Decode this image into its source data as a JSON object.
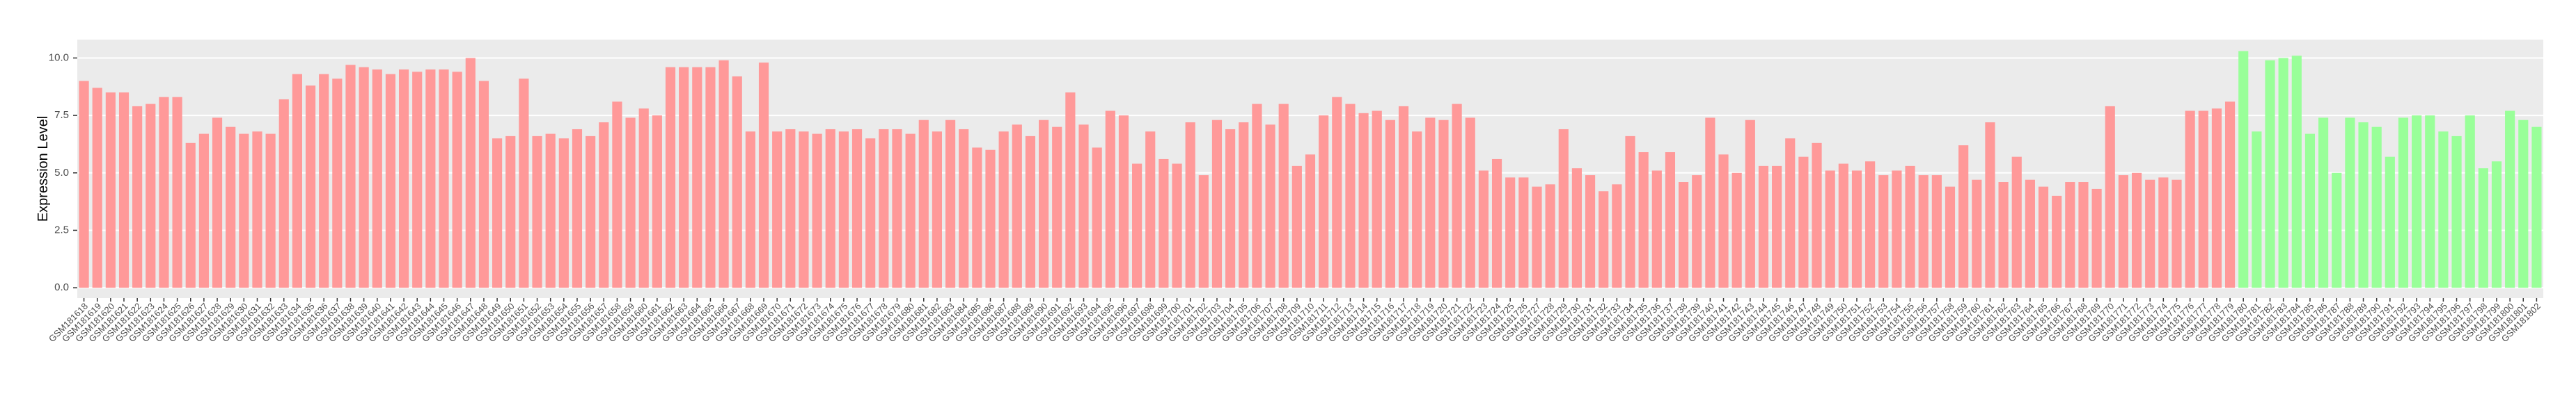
{
  "chart_data": {
    "type": "bar",
    "y_label": "Expression Level",
    "categories": [
      "GSM181618",
      "GSM181619",
      "GSM181620",
      "GSM181621",
      "GSM181622",
      "GSM181623",
      "GSM181624",
      "GSM181625",
      "GSM181626",
      "GSM181627",
      "GSM181628",
      "GSM181629",
      "GSM181630",
      "GSM181631",
      "GSM181632",
      "GSM181633",
      "GSM181634",
      "GSM181635",
      "GSM181636",
      "GSM181637",
      "GSM181638",
      "GSM181639",
      "GSM181640",
      "GSM181641",
      "GSM181642",
      "GSM181643",
      "GSM181644",
      "GSM181645",
      "GSM181646",
      "GSM181647",
      "GSM181648",
      "GSM181649",
      "GSM181650",
      "GSM181651",
      "GSM181652",
      "GSM181653",
      "GSM181654",
      "GSM181655",
      "GSM181656",
      "GSM181657",
      "GSM181658",
      "GSM181659",
      "GSM181660",
      "GSM181661",
      "GSM181662",
      "GSM181663",
      "GSM181664",
      "GSM181665",
      "GSM181666",
      "GSM181667",
      "GSM181668",
      "GSM181669",
      "GSM181670",
      "GSM181671",
      "GSM181672",
      "GSM181673",
      "GSM181674",
      "GSM181675",
      "GSM181676",
      "GSM181677",
      "GSM181678",
      "GSM181679",
      "GSM181680",
      "GSM181681",
      "GSM181682",
      "GSM181683",
      "GSM181684",
      "GSM181685",
      "GSM181686",
      "GSM181687",
      "GSM181688",
      "GSM181689",
      "GSM181690",
      "GSM181691",
      "GSM181692",
      "GSM181693",
      "GSM181694",
      "GSM181695",
      "GSM181696",
      "GSM181697",
      "GSM181698",
      "GSM181699",
      "GSM181700",
      "GSM181701",
      "GSM181702",
      "GSM181703",
      "GSM181704",
      "GSM181705",
      "GSM181706",
      "GSM181707",
      "GSM181708",
      "GSM181709",
      "GSM181710",
      "GSM181711",
      "GSM181712",
      "GSM181713",
      "GSM181714",
      "GSM181715",
      "GSM181716",
      "GSM181717",
      "GSM181718",
      "GSM181719",
      "GSM181720",
      "GSM181721",
      "GSM181722",
      "GSM181723",
      "GSM181724",
      "GSM181725",
      "GSM181726",
      "GSM181727",
      "GSM181728",
      "GSM181729",
      "GSM181730",
      "GSM181731",
      "GSM181732",
      "GSM181733",
      "GSM181734",
      "GSM181735",
      "GSM181736",
      "GSM181737",
      "GSM181738",
      "GSM181739",
      "GSM181740",
      "GSM181741",
      "GSM181742",
      "GSM181743",
      "GSM181744",
      "GSM181745",
      "GSM181746",
      "GSM181747",
      "GSM181748",
      "GSM181749",
      "GSM181750",
      "GSM181751",
      "GSM181752",
      "GSM181753",
      "GSM181754",
      "GSM181755",
      "GSM181756",
      "GSM181757",
      "GSM181758",
      "GSM181759",
      "GSM181760",
      "GSM181761",
      "GSM181762",
      "GSM181763",
      "GSM181764",
      "GSM181765",
      "GSM181766",
      "GSM181767",
      "GSM181768",
      "GSM181769",
      "GSM181770",
      "GSM181771",
      "GSM181772",
      "GSM181773",
      "GSM181774",
      "GSM181775",
      "GSM181776",
      "GSM181777",
      "GSM181778",
      "GSM181779",
      "GSM181780",
      "GSM181781",
      "GSM181782",
      "GSM181783",
      "GSM181784",
      "GSM181785",
      "GSM181786",
      "GSM181787",
      "GSM181788",
      "GSM181789",
      "GSM181790",
      "GSM181791",
      "GSM181792",
      "GSM181793",
      "GSM181794",
      "GSM181795",
      "GSM181796",
      "GSM181797",
      "GSM181798",
      "GSM181799",
      "GSM181800",
      "GSM181801",
      "GSM181802"
    ],
    "series": [
      {
        "color": "#ff9999",
        "values": [
          9.0,
          8.7,
          8.5,
          8.5,
          7.9,
          8.0,
          8.3,
          8.3,
          6.3,
          6.7,
          7.4,
          7.0,
          6.7,
          6.8,
          6.7,
          8.2,
          9.3,
          8.8,
          9.3,
          9.1,
          9.7,
          9.6,
          9.5,
          9.3,
          9.5,
          9.4,
          9.5,
          9.5,
          9.4,
          10.0,
          9.0,
          6.5,
          6.6,
          9.1,
          6.6,
          6.7,
          6.5,
          6.9,
          6.6,
          7.2,
          8.1,
          7.4,
          7.8,
          7.5,
          9.6,
          9.6,
          9.6,
          9.6,
          9.9,
          9.2,
          6.8,
          9.8,
          6.8,
          6.9,
          6.8,
          6.7,
          6.9,
          6.8,
          6.9,
          6.5,
          6.9,
          6.9,
          6.7,
          7.3,
          6.8,
          7.3,
          6.9,
          6.1,
          6.0,
          6.8,
          7.1,
          6.6,
          7.3,
          7.0,
          8.5,
          7.1,
          6.1,
          7.7,
          7.5,
          5.4,
          6.8,
          5.6,
          5.4,
          7.2,
          4.9,
          7.3,
          6.9,
          7.2,
          8.0,
          7.1,
          8.0,
          5.3,
          5.8,
          7.5,
          8.3,
          8.0,
          7.6,
          7.7,
          7.3,
          7.9,
          6.8,
          7.4,
          7.3,
          8.0,
          7.4,
          5.1,
          5.6,
          4.8,
          4.8,
          4.4,
          4.5,
          6.9,
          5.2,
          4.9,
          4.2,
          4.5,
          6.6,
          5.9,
          5.1,
          5.9,
          4.6,
          4.9,
          7.4,
          5.8,
          5.0,
          7.3,
          5.3,
          5.3,
          6.5,
          5.7,
          6.3,
          5.1,
          5.4,
          5.1,
          5.5,
          4.9,
          5.1,
          5.3,
          4.9,
          4.9,
          4.4,
          6.2,
          4.7,
          7.2,
          4.6,
          5.7,
          4.7,
          4.4,
          4.0,
          4.6,
          4.6,
          4.3,
          7.9,
          4.9,
          5.0,
          4.7,
          4.8,
          4.7,
          7.7,
          7.7,
          7.8,
          8.1,
          null,
          null,
          null,
          null,
          null,
          null,
          null,
          null,
          null,
          null,
          null,
          null,
          null,
          null,
          null,
          null,
          null,
          null,
          null,
          null,
          null,
          null,
          null
        ]
      },
      {
        "color": "#99ff99",
        "values": [
          null,
          null,
          null,
          null,
          null,
          null,
          null,
          null,
          null,
          null,
          null,
          null,
          null,
          null,
          null,
          null,
          null,
          null,
          null,
          null,
          null,
          null,
          null,
          null,
          null,
          null,
          null,
          null,
          null,
          null,
          null,
          null,
          null,
          null,
          null,
          null,
          null,
          null,
          null,
          null,
          null,
          null,
          null,
          null,
          null,
          null,
          null,
          null,
          null,
          null,
          null,
          null,
          null,
          null,
          null,
          null,
          null,
          null,
          null,
          null,
          null,
          null,
          null,
          null,
          null,
          null,
          null,
          null,
          null,
          null,
          null,
          null,
          null,
          null,
          null,
          null,
          null,
          null,
          null,
          null,
          null,
          null,
          null,
          null,
          null,
          null,
          null,
          null,
          null,
          null,
          null,
          null,
          null,
          null,
          null,
          null,
          null,
          null,
          null,
          null,
          null,
          null,
          null,
          null,
          null,
          null,
          null,
          null,
          null,
          null,
          null,
          null,
          null,
          null,
          null,
          null,
          null,
          null,
          null,
          null,
          null,
          null,
          null,
          null,
          null,
          null,
          null,
          null,
          null,
          null,
          null,
          null,
          null,
          null,
          null,
          null,
          null,
          null,
          null,
          null,
          null,
          null,
          null,
          null,
          null,
          null,
          null,
          null,
          null,
          null,
          null,
          null,
          null,
          null,
          null,
          null,
          null,
          null,
          null,
          null,
          null,
          null,
          10.3,
          6.8,
          9.9,
          10.0,
          10.1,
          6.7,
          7.4,
          5.0,
          7.4,
          7.2,
          7.0,
          5.7,
          7.4,
          7.5,
          7.5,
          6.8,
          6.6,
          7.5,
          5.2,
          5.5,
          7.7,
          7.3,
          7.0
        ]
      }
    ],
    "ylim": [
      -0.45,
      10.8
    ],
    "yticks": [
      {
        "value": 0,
        "label": "0.0"
      },
      2.5,
      {
        "value": 5,
        "label": "5.0"
      },
      7.5,
      {
        "value": 10,
        "label": "10.0"
      }
    ],
    "grid": true
  }
}
